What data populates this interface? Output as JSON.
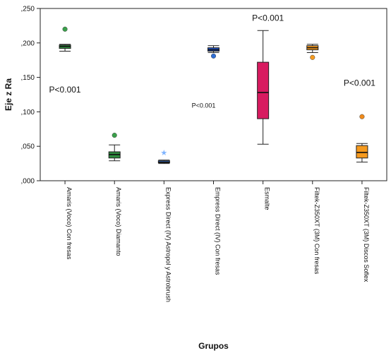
{
  "chart_data": {
    "type": "box",
    "title": "",
    "xlabel": "Grupos",
    "ylabel": "Eje z Ra",
    "ylim": [
      0,
      0.25
    ],
    "yticks": [
      0,
      0.05,
      0.1,
      0.15,
      0.2,
      0.25
    ],
    "ytick_labels": [
      ",000",
      ",050",
      ",100",
      ",150",
      ",200",
      ",250"
    ],
    "grid": false,
    "categories": [
      "Amaris (Voco) Con fresas",
      "Amaris (Voco) Diamanto",
      "Express Direct (IV) Astropol y Astrobrush",
      "Empress Direct (IV) Con fresas",
      "Esmalte",
      "Filtek-Z350XT (3M) Con fresas",
      "Filtek-Z350XT (3M) Discos Soflex"
    ],
    "boxes": [
      {
        "min": 0.188,
        "q1": 0.192,
        "median": 0.195,
        "q3": 0.197,
        "max": 0.198,
        "outliers": [
          0.22
        ],
        "color": "#2e8b3e",
        "outlier_color": "#3aa04a",
        "outlier_marker": "circle"
      },
      {
        "min": 0.029,
        "q1": 0.033,
        "median": 0.038,
        "q3": 0.042,
        "max": 0.052,
        "outliers": [
          0.066
        ],
        "color": "#2e8b3e",
        "outlier_color": "#3aa04a",
        "outlier_marker": "circle"
      },
      {
        "min": 0.025,
        "q1": 0.026,
        "median": 0.027,
        "q3": 0.029,
        "max": 0.03,
        "outliers": [
          0.041
        ],
        "color": "#2f6fd6",
        "outlier_color": "#7fb4ff",
        "outlier_marker": "star"
      },
      {
        "min": 0.186,
        "q1": 0.188,
        "median": 0.19,
        "q3": 0.193,
        "max": 0.196,
        "outliers": [
          0.181
        ],
        "color": "#1f4fbf",
        "outlier_color": "#2f6fd6",
        "outlier_marker": "circle"
      },
      {
        "min": 0.053,
        "q1": 0.09,
        "median": 0.128,
        "q3": 0.172,
        "max": 0.218,
        "outliers": [],
        "color": "#d81b60",
        "outlier_color": "#d81b60",
        "outlier_marker": "circle"
      },
      {
        "min": 0.186,
        "q1": 0.19,
        "median": 0.193,
        "q3": 0.196,
        "max": 0.198,
        "outliers": [
          0.179
        ],
        "color": "#f59a1f",
        "outlier_color": "#f59a1f",
        "outlier_marker": "circle"
      },
      {
        "min": 0.027,
        "q1": 0.033,
        "median": 0.041,
        "q3": 0.051,
        "max": 0.054,
        "outliers": [
          0.093
        ],
        "color": "#f59a1f",
        "outlier_color": "#f08a1a",
        "outlier_marker": "circle"
      }
    ],
    "annotations": [
      {
        "text": "P<0.001",
        "x_category": 0,
        "y": 0.132,
        "size": 12
      },
      {
        "text": "P<0.001",
        "x_category": 2.8,
        "y": 0.11,
        "size": 9
      },
      {
        "text": "P<0.001",
        "x_category": 4.1,
        "y": 0.236,
        "size": 12
      },
      {
        "text": "P<0.001",
        "x_category": 5.95,
        "y": 0.142,
        "size": 12
      }
    ]
  }
}
